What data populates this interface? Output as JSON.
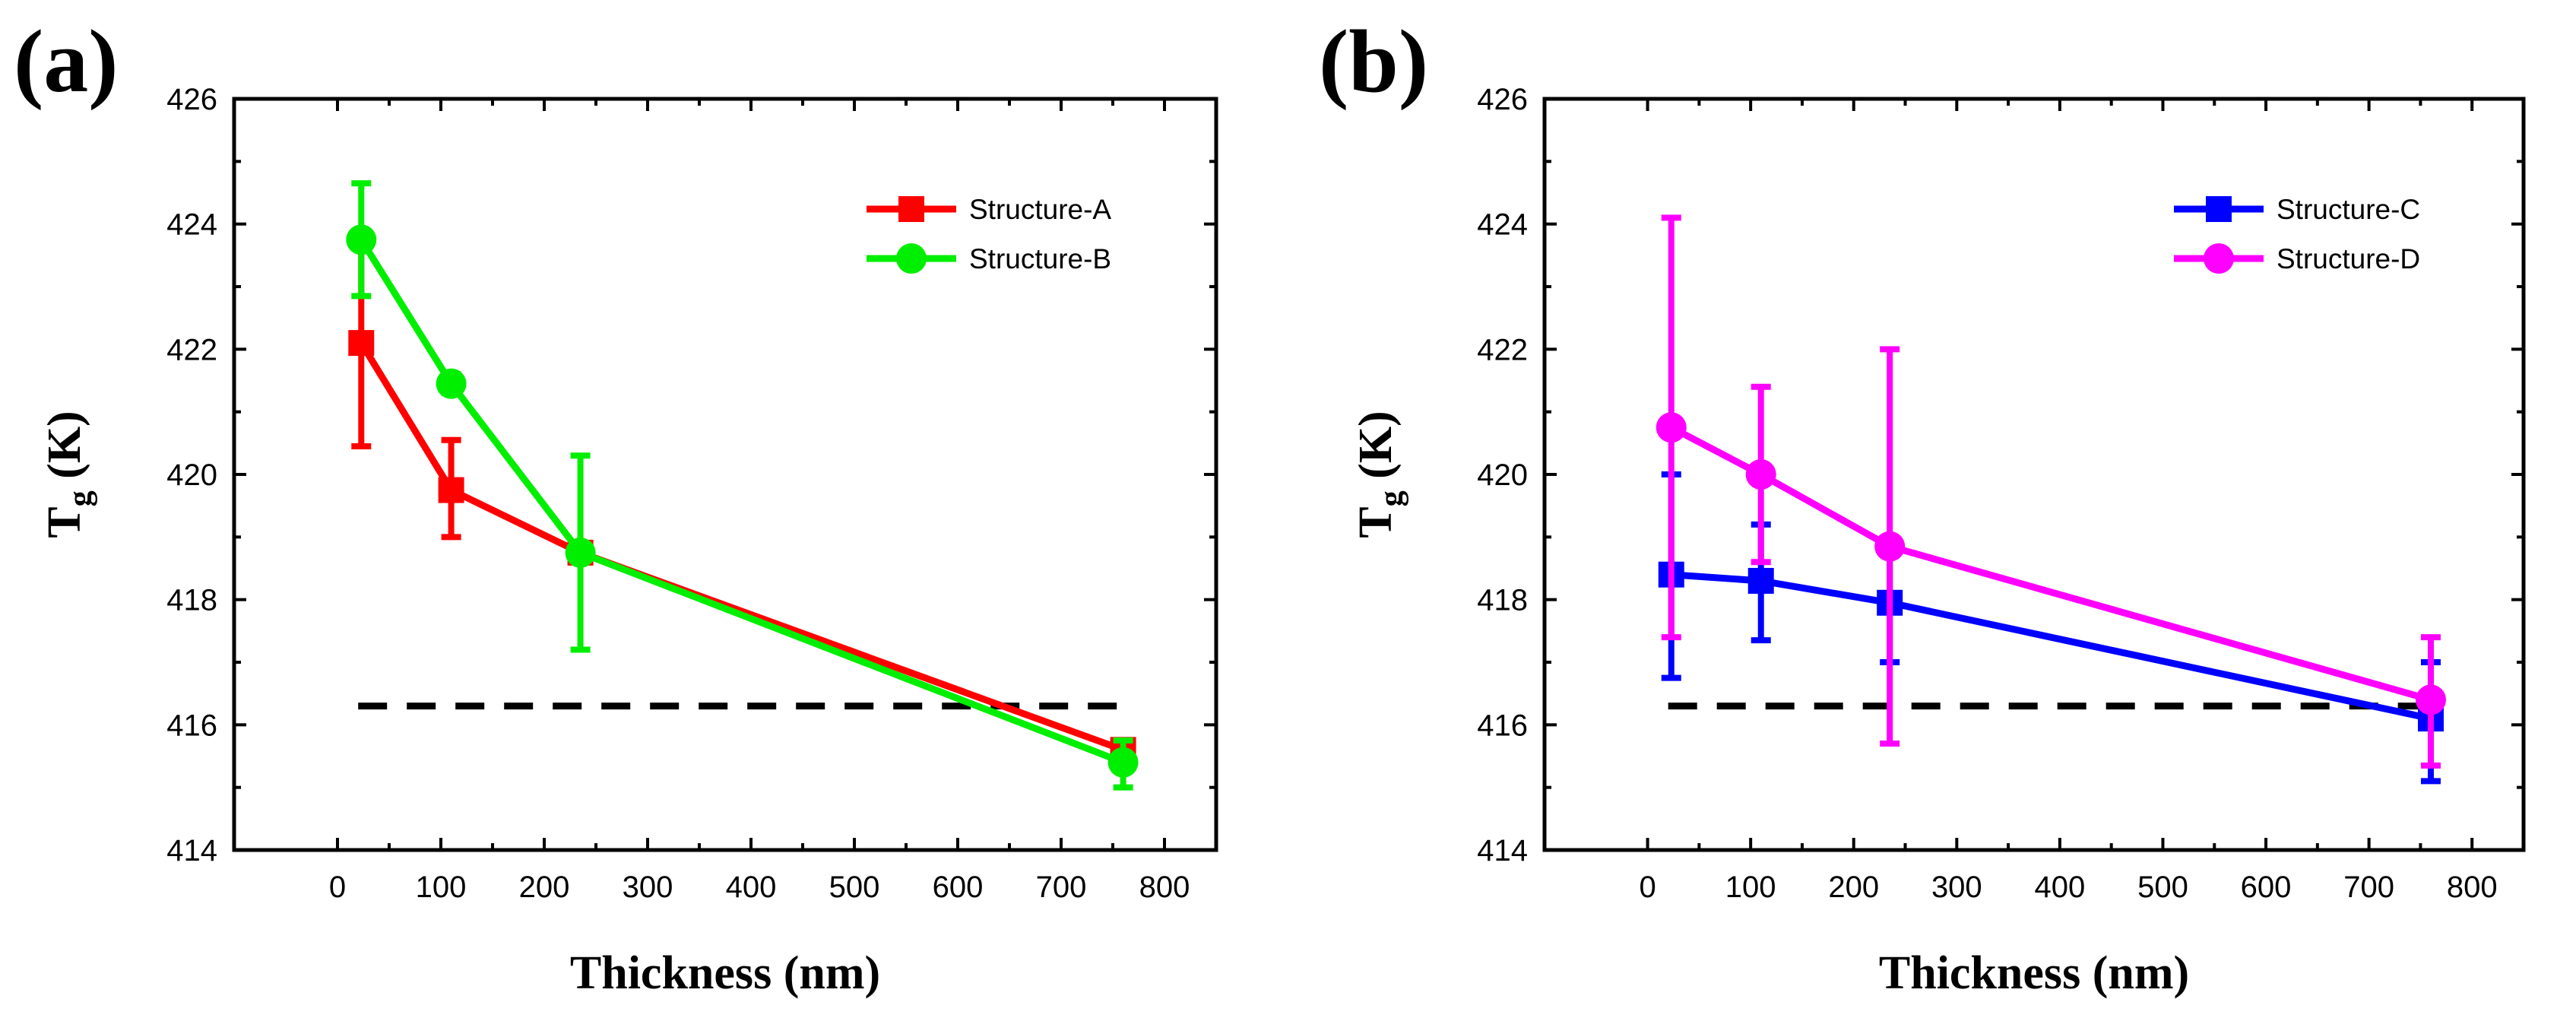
{
  "chart_data": [
    {
      "panel_label": "(a)",
      "type": "line",
      "xlabel": "Thickness (nm)",
      "ylabel_main": "T",
      "ylabel_sub": "g",
      "ylabel_unit": "(K)",
      "xlim": [
        -100,
        850
      ],
      "ylim": [
        414,
        426
      ],
      "xticks": [
        0,
        100,
        200,
        300,
        400,
        500,
        600,
        700,
        800
      ],
      "yticks": [
        414,
        416,
        418,
        420,
        422,
        424,
        426
      ],
      "reference_line": {
        "y": 416.3,
        "x_range": [
          20,
          770
        ],
        "style": "dashed",
        "color": "#000000"
      },
      "legend_position": "top-right",
      "series": [
        {
          "name": "Structure-A",
          "color": "#ff0000",
          "marker": "square",
          "x": [
            23,
            110,
            235,
            760
          ],
          "y": [
            422.1,
            419.75,
            418.75,
            415.6
          ],
          "yerr_low": [
            420.45,
            419.0,
            418.75,
            415.3
          ],
          "yerr_high": [
            423.8,
            420.55,
            418.75,
            415.75
          ]
        },
        {
          "name": "Structure-B",
          "color": "#00ee00",
          "marker": "circle",
          "x": [
            23,
            110,
            235,
            760
          ],
          "y": [
            423.75,
            421.45,
            418.75,
            415.4
          ],
          "yerr_low": [
            422.85,
            421.3,
            417.2,
            415.0
          ],
          "yerr_high": [
            424.65,
            421.6,
            420.3,
            415.75
          ]
        }
      ]
    },
    {
      "panel_label": "(b)",
      "type": "line",
      "xlabel": "Thickness (nm)",
      "ylabel_main": "T",
      "ylabel_sub": "g",
      "ylabel_unit": "(K)",
      "xlim": [
        -100,
        850
      ],
      "ylim": [
        414,
        426
      ],
      "xticks": [
        0,
        100,
        200,
        300,
        400,
        500,
        600,
        700,
        800
      ],
      "yticks": [
        414,
        416,
        418,
        420,
        422,
        424,
        426
      ],
      "reference_line": {
        "y": 416.3,
        "x_range": [
          20,
          770
        ],
        "style": "dashed",
        "color": "#000000"
      },
      "legend_position": "top-right",
      "series": [
        {
          "name": "Structure-C",
          "color": "#0000ff",
          "marker": "square",
          "x": [
            23,
            110,
            235,
            760
          ],
          "y": [
            418.4,
            418.3,
            417.95,
            416.1
          ],
          "yerr_low": [
            416.75,
            417.35,
            417.0,
            415.1
          ],
          "yerr_high": [
            420.0,
            419.2,
            418.9,
            417.0
          ]
        },
        {
          "name": "Structure-D",
          "color": "#ff00ff",
          "marker": "circle",
          "x": [
            23,
            110,
            235,
            760
          ],
          "y": [
            420.75,
            420.0,
            418.85,
            416.4
          ],
          "yerr_low": [
            417.4,
            418.6,
            415.7,
            415.35
          ],
          "yerr_high": [
            424.1,
            421.4,
            422.0,
            417.4
          ]
        }
      ]
    }
  ]
}
